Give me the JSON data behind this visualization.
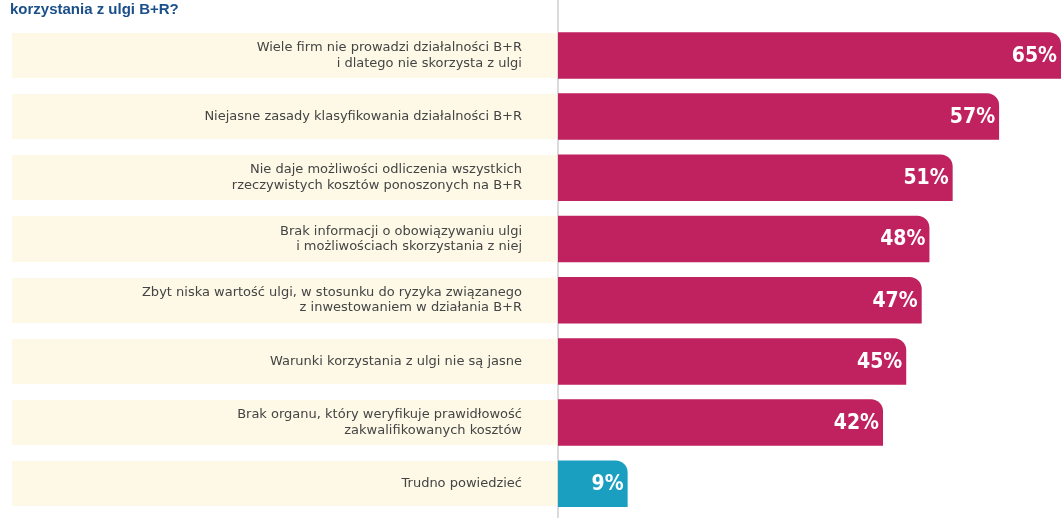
{
  "chart_data": {
    "type": "bar",
    "orientation": "horizontal",
    "title": "korzystania z ulgi B+R?",
    "categories": [
      "Wiele firm nie prowadzi działalności B+R\ni dlatego nie skorzysta z ulgi",
      "Niejasne zasady klasyfikowania działalności B+R",
      "Nie daje możliwości odliczenia wszystkich\nrzeczywistych kosztów ponoszonych na B+R",
      "Brak informacji o obowiązywaniu ulgi\ni możliwościach skorzystania z niej",
      "Zbyt niska wartość ulgi, w stosunku do ryzyka związanego\nz inwestowaniem w działania B+R",
      "Warunki korzystania z ulgi nie są jasne",
      "Brak organu, który weryfikuje prawidłowość\nzakwalifikowanych kosztów",
      "Trudno powiedzieć"
    ],
    "values": [
      65,
      57,
      51,
      48,
      47,
      45,
      42,
      9
    ],
    "colors": [
      "#c0215f",
      "#c0215f",
      "#c0215f",
      "#c0215f",
      "#c0215f",
      "#c0215f",
      "#c0215f",
      "#1a9fc0"
    ],
    "value_labels": [
      "65%",
      "57%",
      "51%",
      "48%",
      "47%",
      "45%",
      "42%",
      "9%"
    ],
    "xlim": [
      0,
      65
    ],
    "legend": false
  }
}
